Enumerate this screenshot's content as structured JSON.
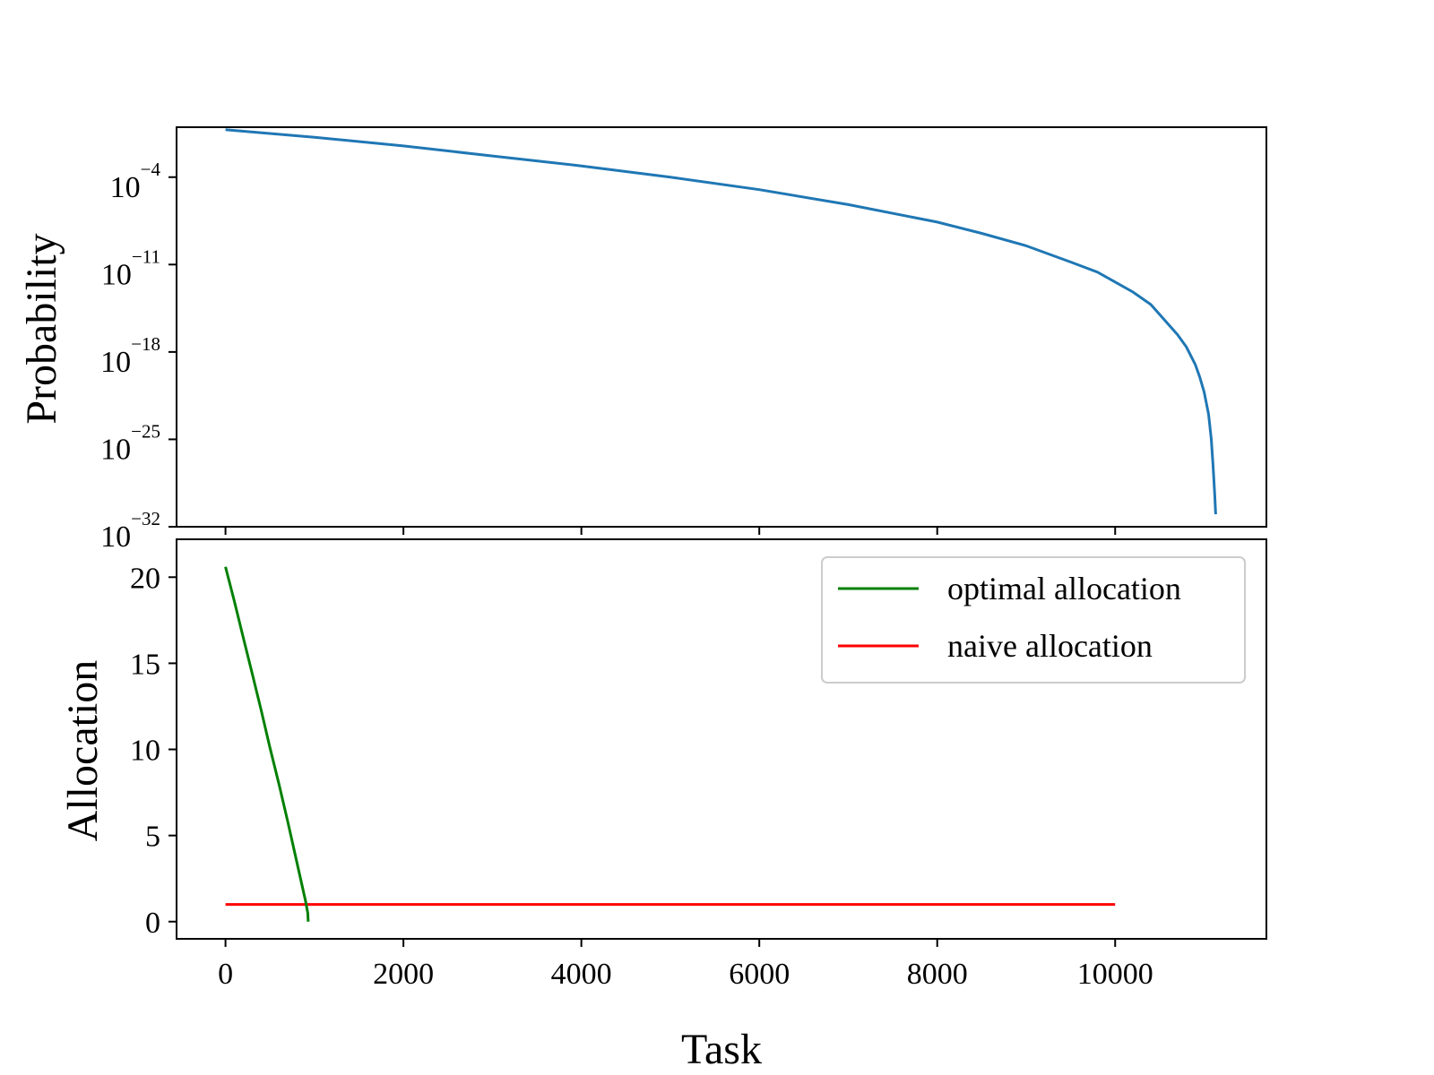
{
  "chart_data": [
    {
      "type": "line",
      "title": "",
      "xlabel": "",
      "ylabel": "Probability",
      "yscale": "log",
      "ylim_exponent": [
        -32,
        0
      ],
      "xlim": [
        -550,
        11700
      ],
      "yticks": [
        {
          "base": "10",
          "exp": "−32",
          "value_exponent": -32
        },
        {
          "base": "10",
          "exp": "−25",
          "value_exponent": -25
        },
        {
          "base": "10",
          "exp": "−18",
          "value_exponent": -18
        },
        {
          "base": "10",
          "exp": "−11",
          "value_exponent": -11
        },
        {
          "base": "10",
          "exp": "−4",
          "value_exponent": -4
        }
      ],
      "xticks_shared": [
        0,
        2000,
        4000,
        6000,
        8000,
        10000
      ],
      "grid": false,
      "series": [
        {
          "color": "#1f77b4",
          "x": [
            0,
            1000,
            2000,
            3000,
            4000,
            5000,
            6000,
            7000,
            8000,
            8500,
            9000,
            9500,
            9800,
            10000,
            10200,
            10400,
            10600,
            10700,
            10800,
            10900,
            10950,
            11000,
            11050,
            11080,
            11100,
            11120,
            11130
          ],
          "y_exponent": [
            -0.2,
            -0.8,
            -1.5,
            -2.3,
            -3.1,
            -4.0,
            -5.0,
            -6.2,
            -7.6,
            -8.5,
            -9.5,
            -10.8,
            -11.6,
            -12.4,
            -13.2,
            -14.2,
            -15.8,
            -16.6,
            -17.6,
            -19.0,
            -20.0,
            -21.2,
            -23.0,
            -25.0,
            -27.0,
            -29.5,
            -31.0
          ]
        }
      ]
    },
    {
      "type": "line",
      "title": "",
      "xlabel": "Task",
      "ylabel": "Allocation",
      "xlim": [
        -550,
        11700
      ],
      "ylim": [
        -1.0,
        22.2
      ],
      "xticks": [
        "0",
        "2000",
        "4000",
        "6000",
        "8000",
        "10000"
      ],
      "yticks": [
        "0",
        "5",
        "10",
        "15",
        "20"
      ],
      "grid": false,
      "legend_placement": "upper right",
      "series": [
        {
          "name": "optimal allocation",
          "color": "#008000",
          "x": [
            0,
            100,
            200,
            300,
            400,
            500,
            600,
            700,
            800,
            900,
            925,
            930
          ],
          "y": [
            20.6,
            18.6,
            16.5,
            14.4,
            12.3,
            10.1,
            8.0,
            5.8,
            3.5,
            1.2,
            0.5,
            0.0
          ]
        },
        {
          "name": "naive allocation",
          "color": "#ff0000",
          "x": [
            0,
            10000
          ],
          "y": [
            1,
            1
          ]
        }
      ]
    }
  ]
}
